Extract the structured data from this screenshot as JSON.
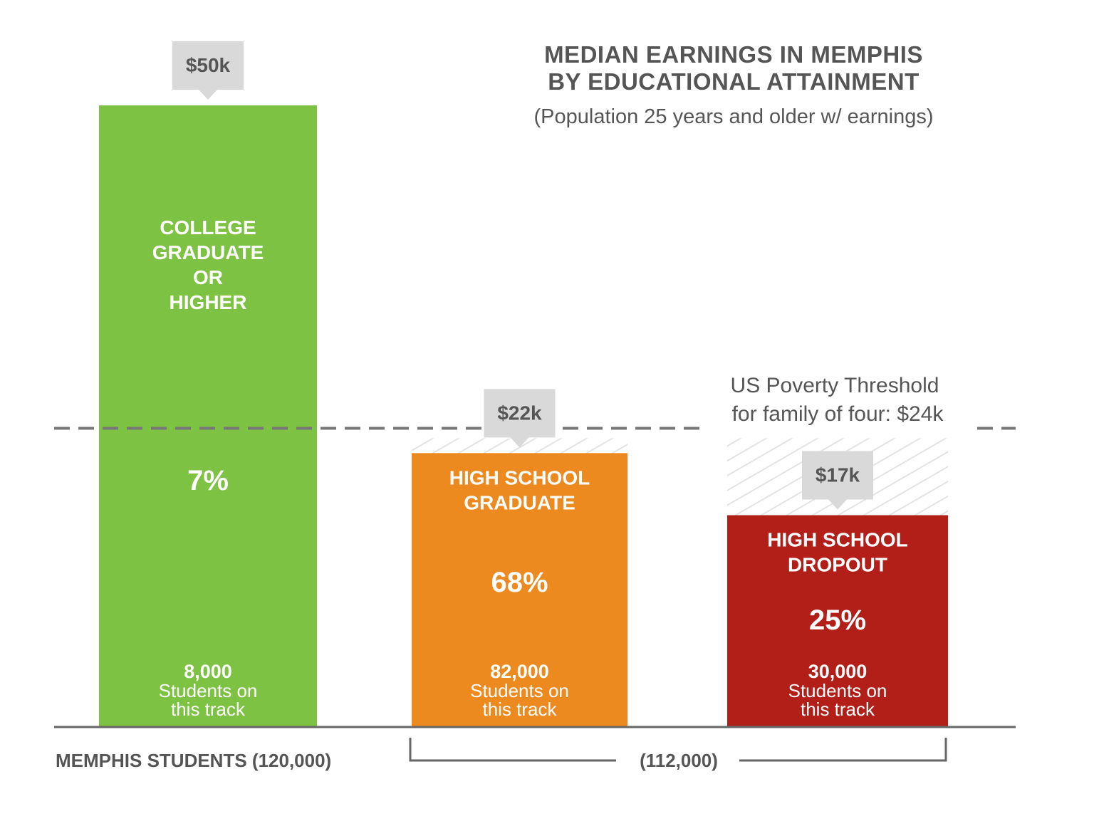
{
  "title_lines": [
    "MEDIAN EARNINGS IN MEMPHIS",
    "BY EDUCATIONAL ATTAINMENT"
  ],
  "subtitle": "(Population 25 years and older w/ earnings)",
  "colors": {
    "college": "#7dc242",
    "hs_grad": "#ec8a20",
    "dropout": "#b21f18",
    "callout": "#d9d9d9",
    "text_dark": "#555555",
    "text_light": "#ffffff",
    "hatch": "#e3e3e3"
  },
  "chart_data": {
    "type": "bar",
    "title": "MEDIAN EARNINGS IN MEMPHIS BY EDUCATIONAL ATTAINMENT",
    "subtitle": "(Population 25 years and older w/ earnings)",
    "categories": [
      "COLLEGE GRADUATE OR HIGHER",
      "HIGH SCHOOL GRADUATE",
      "HIGH SCHOOL DROPOUT"
    ],
    "earnings": [
      50,
      22,
      17
    ],
    "earnings_labels": [
      "$50k",
      "$22k",
      "$17k"
    ],
    "ylim": [
      0,
      50
    ],
    "bar_label_lines": [
      [
        "COLLEGE",
        "GRADUATE",
        "OR",
        "HIGHER"
      ],
      [
        "HIGH SCHOOL",
        "GRADUATE"
      ],
      [
        "HIGH SCHOOL",
        "DROPOUT"
      ]
    ],
    "student_share": [
      "7%",
      "68%",
      "25%"
    ],
    "student_counts": [
      "8,000",
      "82,000",
      "30,000"
    ],
    "students_caption_lines": [
      "Students on",
      "this track"
    ],
    "reference_line": {
      "value": 24,
      "label_lines": [
        "US Poverty Threshold",
        "for family of four: $24k"
      ]
    },
    "axis_caption": "MEMPHIS STUDENTS (120,000)",
    "bracket_label": "(112,000)"
  }
}
